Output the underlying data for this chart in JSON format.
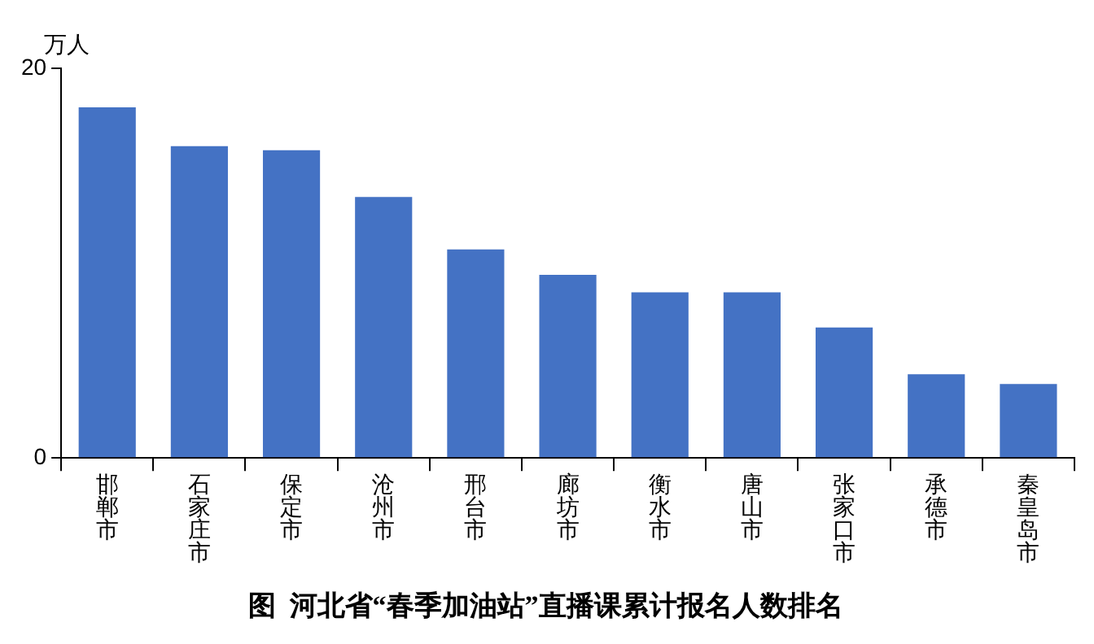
{
  "chart_data": {
    "type": "bar",
    "title": "图  河北省“春季加油站”直播课累计报名人数排名",
    "ylabel": "万人",
    "categories": [
      "邯郸市",
      "石家庄市",
      "保定市",
      "沧州市",
      "邢台市",
      "廊坊市",
      "衡水市",
      "唐山市",
      "张家口市",
      "承德市",
      "秦皇岛市"
    ],
    "values": [
      18.0,
      16.0,
      15.8,
      13.4,
      10.7,
      9.4,
      8.5,
      8.5,
      6.7,
      4.3,
      3.8
    ],
    "color": "#4472c4",
    "ylim": [
      0,
      20
    ],
    "yticks": [
      0,
      20
    ],
    "grid": false,
    "legend": false
  }
}
